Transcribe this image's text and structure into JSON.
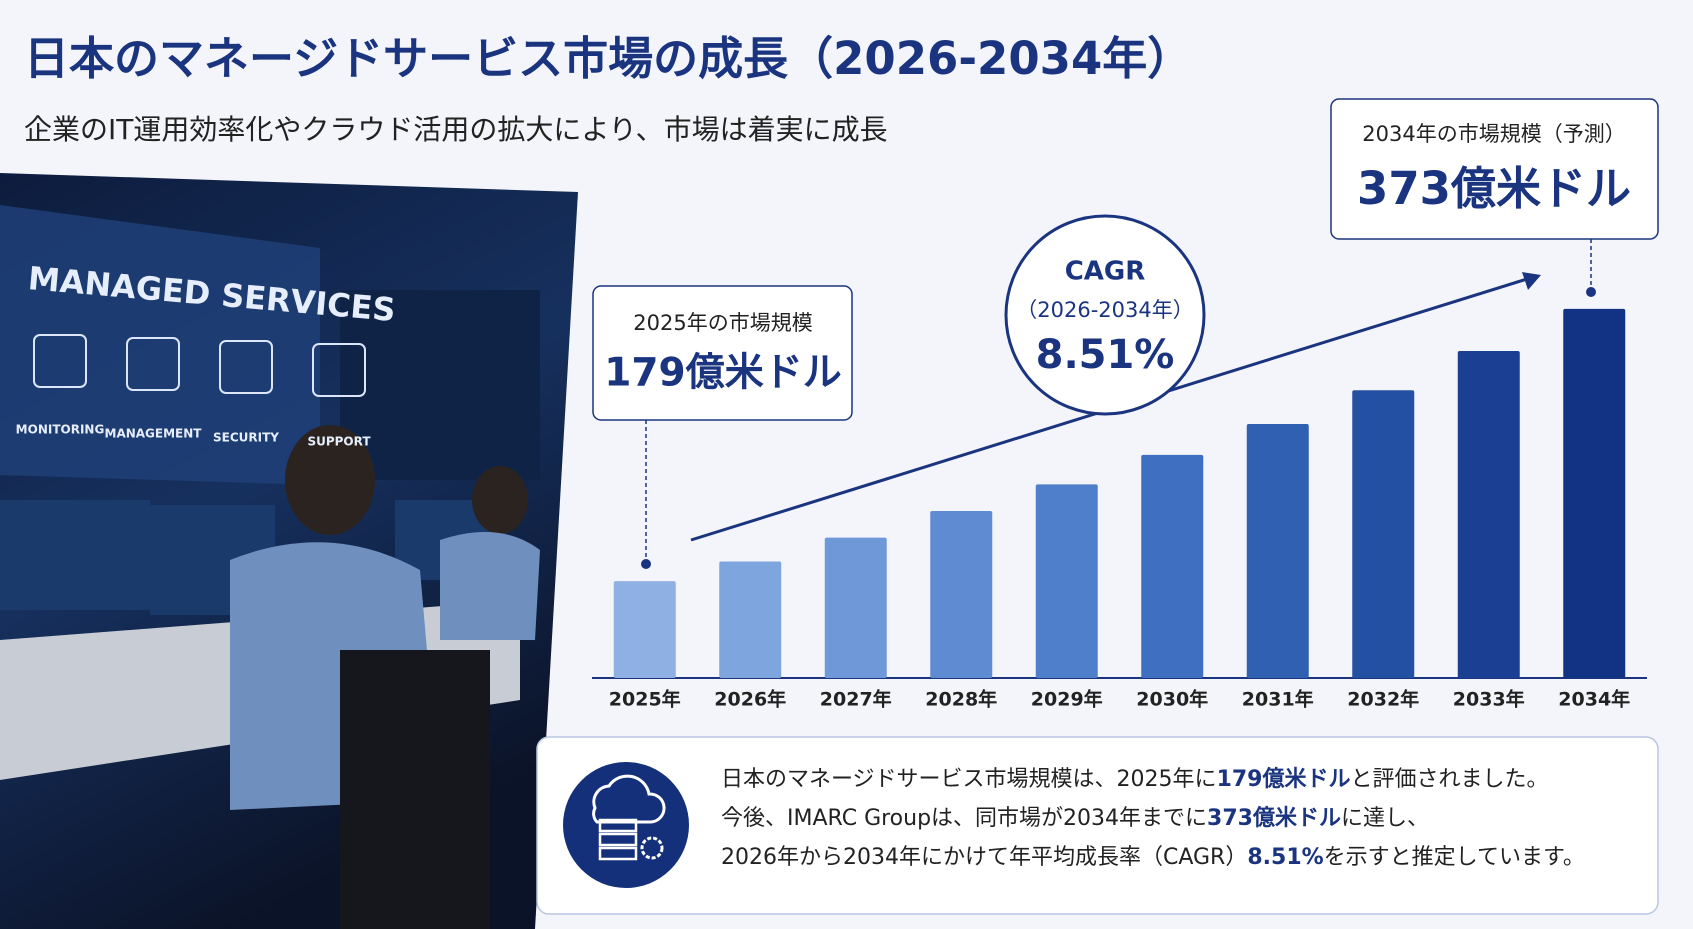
{
  "chart_data": {
    "type": "bar",
    "title": "日本のマネージドサービス市場の成長（2026-2034年）",
    "subtitle": "企業のIT運用効率化やクラウド活用の拡大により、市場は着実に成長",
    "categories": [
      "2025年",
      "2026年",
      "2027年",
      "2028年",
      "2029年",
      "2030年",
      "2031年",
      "2032年",
      "2033年",
      "2034年"
    ],
    "values": [
      179,
      193,
      210,
      229,
      248,
      269,
      291,
      315,
      343,
      373
    ],
    "colors": [
      "#8fb0e3",
      "#7fa5df",
      "#6f98d9",
      "#5f8bd3",
      "#4f7ecb",
      "#3f6fc0",
      "#3060b2",
      "#2450a3",
      "#1a3f93",
      "#123384"
    ],
    "ylim": [
      110,
      400
    ],
    "annotations": {
      "start": {
        "label": "2025年の市場規模",
        "value": "179億米ドル"
      },
      "cagr": {
        "label": "CAGR",
        "period": "（2026-2034年）",
        "value": "8.51%"
      },
      "end": {
        "label": "2034年の市場規模（予測）",
        "value": "373億米ドル"
      }
    }
  },
  "photo": {
    "screen_title": "MANAGED SERVICES",
    "icons": [
      "MONITORING",
      "MANAGEMENT",
      "SECURITY",
      "SUPPORT"
    ]
  },
  "summary": [
    [
      "日本のマネージドサービス市場規模は、2025年に",
      "179億米ドル",
      "と評価されました。"
    ],
    [
      "今後、IMARC Groupは、同市場が2034年までに",
      "373億米ドル",
      "に達し、"
    ],
    [
      "2026年から2034年にかけて年平均成長率（CAGR）",
      "8.51%",
      "を示すと推定しています。"
    ]
  ]
}
